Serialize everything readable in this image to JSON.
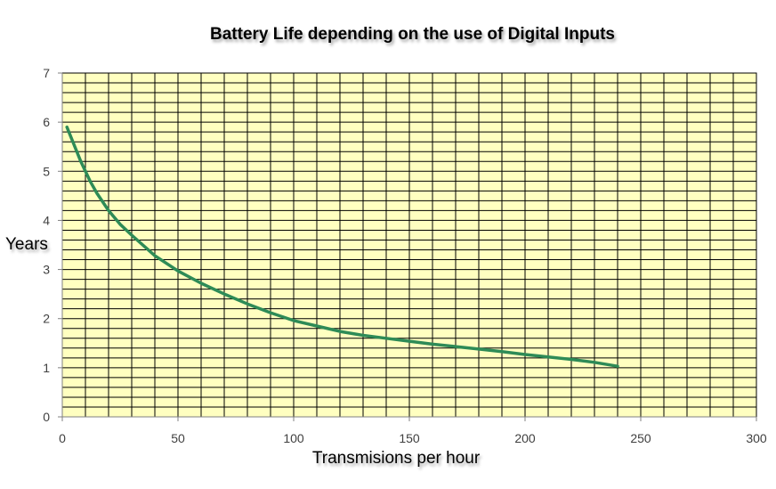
{
  "chart_data": {
    "type": "line",
    "title": "Battery Life depending on the use of Digital Inputs",
    "xlabel": "Transmisions per hour",
    "ylabel": "Years",
    "xlim": [
      0,
      300
    ],
    "ylim": [
      0,
      7
    ],
    "xticks": [
      0,
      50,
      100,
      150,
      200,
      250,
      300
    ],
    "yticks": [
      0,
      1,
      2,
      3,
      4,
      5,
      6,
      7
    ],
    "grid": true,
    "legend": "none",
    "colors": {
      "plot_background": "#ffffc0",
      "grid": "#000000",
      "line": "#2e8b57"
    },
    "series": [
      {
        "x": [
          2,
          5,
          8,
          12,
          15,
          20,
          25,
          30,
          40,
          50,
          60,
          70,
          80,
          90,
          100,
          110,
          120,
          130,
          140,
          150,
          160,
          170,
          180,
          190,
          200,
          210,
          220,
          230,
          240
        ],
        "y": [
          5.9,
          5.55,
          5.2,
          4.8,
          4.55,
          4.2,
          3.92,
          3.7,
          3.28,
          2.97,
          2.72,
          2.5,
          2.3,
          2.12,
          1.96,
          1.85,
          1.74,
          1.66,
          1.6,
          1.54,
          1.48,
          1.43,
          1.38,
          1.33,
          1.27,
          1.22,
          1.17,
          1.11,
          1.03
        ]
      }
    ]
  }
}
